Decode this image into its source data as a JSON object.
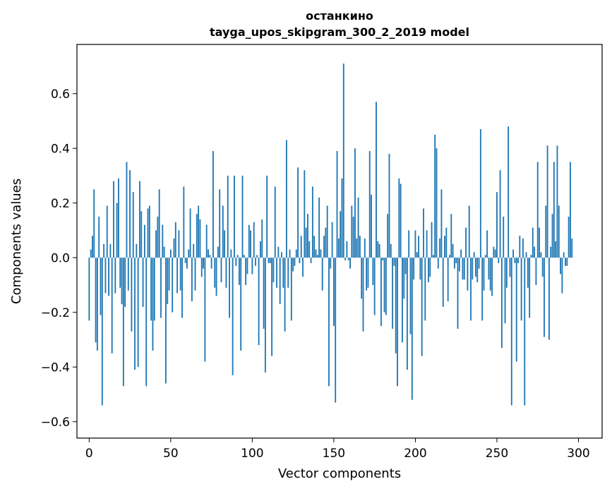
{
  "chart_data": {
    "type": "bar",
    "title": "останкино",
    "subtitle": "tayga_upos_skipgram_300_2_2019 model",
    "xlabel": "Vector components",
    "ylabel": "Components values",
    "xlim": [
      -7.5,
      314.5
    ],
    "ylim": [
      -0.66,
      0.78
    ],
    "xticks": [
      0,
      50,
      100,
      150,
      200,
      250,
      300
    ],
    "yticks": [
      -0.6,
      -0.4,
      -0.2,
      0.0,
      0.2,
      0.4,
      0.6
    ],
    "ytick_labels": [
      "−0.6",
      "−0.4",
      "−0.2",
      "0.0",
      "0.2",
      "0.4",
      "0.6"
    ],
    "xtick_labels": [
      "0",
      "50",
      "100",
      "150",
      "200",
      "250",
      "300"
    ],
    "bar_color": "#1f77b4",
    "values": [
      -0.23,
      0.03,
      0.08,
      0.25,
      -0.31,
      -0.34,
      0.15,
      -0.21,
      -0.54,
      0.05,
      -0.13,
      0.19,
      -0.14,
      0.05,
      -0.35,
      0.28,
      -0.13,
      0.2,
      0.29,
      -0.11,
      -0.17,
      -0.47,
      -0.18,
      0.35,
      -0.12,
      0.32,
      -0.27,
      0.24,
      -0.41,
      0.05,
      -0.4,
      0.28,
      0.17,
      -0.18,
      0.12,
      -0.47,
      0.18,
      0.19,
      -0.23,
      -0.34,
      -0.23,
      0.1,
      0.15,
      0.25,
      -0.22,
      0.12,
      0.04,
      -0.46,
      -0.17,
      -0.12,
      0.03,
      -0.2,
      0.07,
      0.13,
      -0.13,
      0.1,
      -0.12,
      -0.22,
      0.26,
      -0.02,
      -0.04,
      0.03,
      0.18,
      -0.16,
      0.05,
      -0.12,
      0.16,
      0.19,
      0.14,
      -0.07,
      -0.04,
      -0.38,
      0.12,
      0.03,
      0.01,
      -0.04,
      0.39,
      -0.11,
      -0.14,
      0.04,
      0.25,
      -0.09,
      0.19,
      0.1,
      -0.11,
      0.3,
      -0.22,
      0.03,
      -0.43,
      0.3,
      -0.03,
      0.01,
      -0.1,
      -0.34,
      0.3,
      0.01,
      -0.1,
      -0.06,
      0.12,
      0.1,
      -0.06,
      0.13,
      -0.03,
      0.01,
      -0.32,
      0.06,
      0.14,
      -0.26,
      -0.42,
      0.3,
      -0.02,
      -0.02,
      -0.36,
      -0.09,
      0.26,
      -0.11,
      0.04,
      -0.17,
      0.02,
      -0.11,
      -0.27,
      0.43,
      -0.11,
      0.03,
      -0.23,
      -0.05,
      -0.03,
      0.03,
      0.33,
      -0.02,
      0.08,
      -0.07,
      0.32,
      0.11,
      0.16,
      0.06,
      -0.02,
      0.26,
      0.08,
      0.03,
      0.01,
      0.22,
      0.03,
      -0.12,
      0.08,
      0.11,
      0.19,
      -0.47,
      -0.04,
      0.13,
      -0.25,
      -0.53,
      0.39,
      0.07,
      0.17,
      0.29,
      0.71,
      -0.01,
      0.06,
      -0.01,
      -0.04,
      0.19,
      0.15,
      0.4,
      0.07,
      0.22,
      0.08,
      -0.15,
      -0.27,
      0.07,
      -0.12,
      -0.11,
      0.39,
      0.23,
      -0.1,
      -0.21,
      0.57,
      0.06,
      0.05,
      -0.25,
      -0.01,
      -0.2,
      -0.21,
      0.16,
      0.38,
      0.05,
      -0.26,
      -0.03,
      -0.35,
      -0.47,
      0.29,
      0.27,
      -0.31,
      -0.15,
      -0.06,
      -0.41,
      0.1,
      -0.28,
      -0.52,
      -0.08,
      0.1,
      0.02,
      0.08,
      -0.08,
      -0.36,
      0.18,
      -0.23,
      0.1,
      -0.09,
      -0.07,
      0.13,
      0.01,
      0.45,
      0.4,
      -0.04,
      0.07,
      0.25,
      -0.18,
      0.08,
      0.11,
      -0.16,
      0.01,
      0.16,
      0.05,
      -0.04,
      -0.02,
      -0.26,
      -0.05,
      0.03,
      -0.08,
      -0.08,
      0.11,
      -0.12,
      0.19,
      -0.23,
      -0.08,
      0.02,
      -0.07,
      -0.09,
      -0.04,
      0.47,
      -0.23,
      -0.12,
      0.01,
      0.1,
      -0.08,
      -0.12,
      -0.14,
      0.04,
      0.03,
      0.24,
      -0.02,
      0.32,
      -0.33,
      0.15,
      -0.24,
      -0.11,
      0.48,
      -0.07,
      -0.54,
      0.03,
      -0.02,
      -0.38,
      -0.02,
      0.08,
      -0.23,
      0.07,
      -0.54,
      0.02,
      -0.11,
      -0.22,
      0.01,
      0.11,
      0.04,
      -0.1,
      0.35,
      0.11,
      0.02,
      -0.07,
      -0.29,
      0.19,
      0.41,
      -0.3,
      0.04,
      0.16,
      0.35,
      0.06,
      0.41,
      0.19,
      -0.06,
      -0.13,
      0.02,
      -0.03,
      -0.03,
      0.15,
      0.35,
      0.07
    ]
  }
}
